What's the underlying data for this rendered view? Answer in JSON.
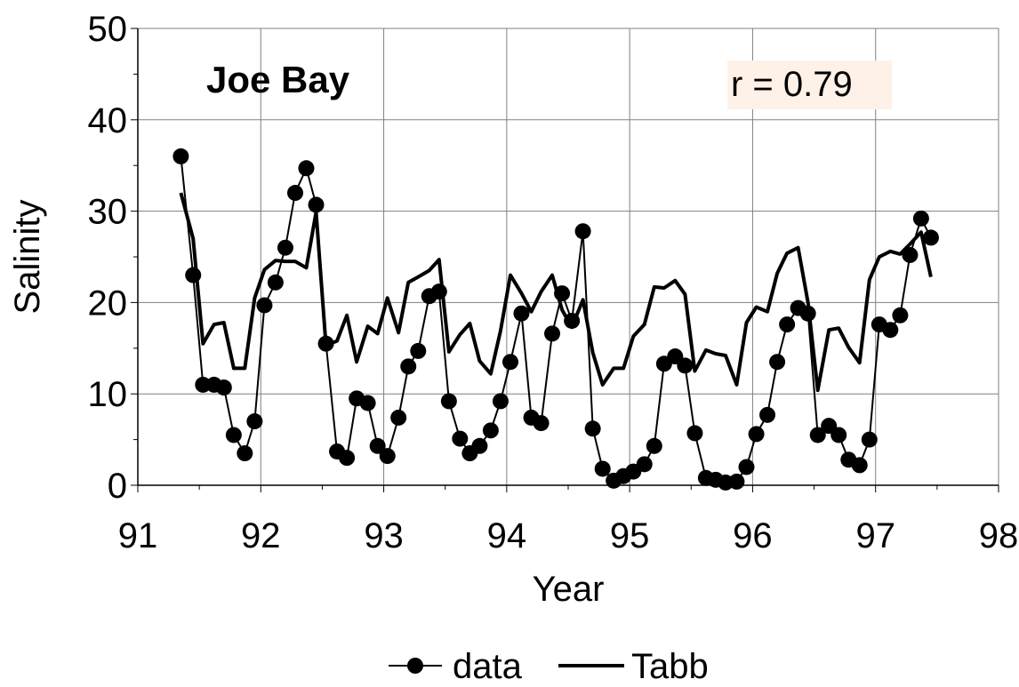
{
  "chart_data": {
    "type": "line",
    "title": "Joe Bay",
    "annotation": "r = 0.79",
    "annotation_bg": "#fdf1e8",
    "xlabel": "Year",
    "ylabel": "Salinity",
    "xlim": [
      91,
      98
    ],
    "ylim": [
      0,
      50
    ],
    "xticks": [
      91,
      92,
      93,
      94,
      95,
      96,
      97,
      98
    ],
    "yticks": [
      0,
      10,
      20,
      30,
      40,
      50
    ],
    "grid": true,
    "legend_position": "bottom-center",
    "series": [
      {
        "name": "data",
        "style": "line-with-circle-markers",
        "color": "#000000",
        "x": [
          91.35,
          91.45,
          91.53,
          91.62,
          91.7,
          91.78,
          91.87,
          91.95,
          92.03,
          92.12,
          92.2,
          92.28,
          92.37,
          92.45,
          92.53,
          92.62,
          92.7,
          92.78,
          92.87,
          92.95,
          93.03,
          93.12,
          93.2,
          93.28,
          93.37,
          93.45,
          93.53,
          93.62,
          93.7,
          93.78,
          93.87,
          93.95,
          94.03,
          94.12,
          94.2,
          94.28,
          94.37,
          94.45,
          94.53,
          94.62,
          94.7,
          94.78,
          94.87,
          94.95,
          95.03,
          95.12,
          95.2,
          95.28,
          95.37,
          95.45,
          95.53,
          95.62,
          95.7,
          95.78,
          95.87,
          95.95,
          96.03,
          96.12,
          96.2,
          96.28,
          96.37,
          96.45,
          96.53,
          96.62,
          96.7,
          96.78,
          96.87,
          96.95,
          97.03,
          97.12,
          97.2,
          97.28,
          97.37,
          97.45
        ],
        "y": [
          36,
          23,
          11,
          11,
          10.7,
          5.5,
          3.5,
          7,
          19.7,
          22.2,
          26,
          32,
          34.7,
          30.7,
          15.5,
          3.7,
          3,
          9.5,
          9,
          4.3,
          3.2,
          7.4,
          13,
          14.7,
          20.7,
          21.2,
          9.2,
          5.1,
          3.5,
          4.3,
          6,
          9.2,
          13.5,
          18.8,
          7.4,
          6.8,
          16.6,
          21,
          18,
          27.8,
          6.2,
          1.8,
          0.5,
          1,
          1.5,
          2.3,
          4.3,
          13.3,
          14.1,
          13.1,
          5.7,
          0.8,
          0.6,
          0.3,
          0.4,
          2,
          5.6,
          7.7,
          13.5,
          17.6,
          19.4,
          18.8,
          5.5,
          6.5,
          5.5,
          2.8,
          2.2,
          5,
          17.6,
          17,
          18.6,
          25.2,
          29.2,
          27.1
        ]
      },
      {
        "name": "Tabb",
        "style": "thick-line",
        "color": "#000000",
        "x": [
          91.35,
          91.45,
          91.53,
          91.62,
          91.7,
          91.78,
          91.87,
          91.95,
          92.03,
          92.12,
          92.2,
          92.28,
          92.37,
          92.45,
          92.53,
          92.62,
          92.7,
          92.78,
          92.87,
          92.95,
          93.03,
          93.12,
          93.2,
          93.28,
          93.37,
          93.45,
          93.53,
          93.62,
          93.7,
          93.78,
          93.87,
          93.95,
          94.03,
          94.12,
          94.2,
          94.28,
          94.37,
          94.45,
          94.53,
          94.62,
          94.7,
          94.78,
          94.87,
          94.95,
          95.03,
          95.12,
          95.2,
          95.28,
          95.37,
          95.45,
          95.53,
          95.62,
          95.7,
          95.78,
          95.87,
          95.95,
          96.03,
          96.12,
          96.2,
          96.28,
          96.37,
          96.45,
          96.53,
          96.62,
          96.7,
          96.78,
          96.87,
          96.95,
          97.03,
          97.12,
          97.2,
          97.28,
          97.37,
          97.45
        ],
        "y": [
          32,
          27,
          15.5,
          17.6,
          17.8,
          12.8,
          12.8,
          20.5,
          23.6,
          24.6,
          24.5,
          24.5,
          23.8,
          29.9,
          15.3,
          15.8,
          18.6,
          13.5,
          17.4,
          16.6,
          20.5,
          16.7,
          22.2,
          22.8,
          23.5,
          24.7,
          14.6,
          16.5,
          17.7,
          13.6,
          12.2,
          16.9,
          23,
          21,
          19,
          21.2,
          23,
          19.2,
          17.3,
          20.3,
          14.5,
          11,
          12.8,
          12.8,
          16.3,
          17.6,
          21.7,
          21.6,
          22.4,
          20.9,
          12.5,
          14.8,
          14.4,
          14.2,
          11,
          17.8,
          19.5,
          19,
          23.2,
          25.4,
          26,
          20,
          10.4,
          17,
          17.2,
          15.1,
          13.4,
          22.5,
          25,
          25.6,
          25.3,
          26.4,
          27.7,
          22.8
        ]
      }
    ]
  }
}
